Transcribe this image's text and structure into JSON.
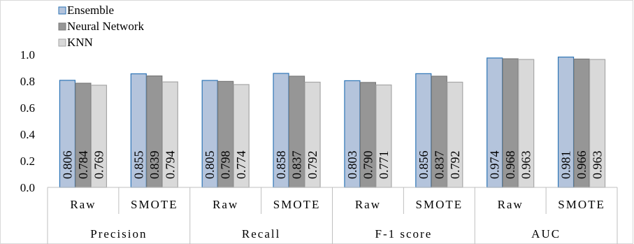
{
  "chart_data": {
    "type": "bar",
    "title": "",
    "xlabel": "",
    "ylabel": "",
    "ylim": [
      0,
      1.0
    ],
    "yticks": [
      "0.0",
      "0.2",
      "0.4",
      "0.6",
      "0.8",
      "1.0"
    ],
    "groups": [
      "Precision",
      "Recall",
      "F-1 score",
      "AUC"
    ],
    "categories": [
      "Raw",
      "SMOTE",
      "Raw",
      "SMOTE",
      "Raw",
      "SMOTE",
      "Raw",
      "SMOTE"
    ],
    "series": [
      {
        "name": "Ensemble",
        "values": [
          0.806,
          0.855,
          0.805,
          0.858,
          0.803,
          0.856,
          0.974,
          0.981
        ],
        "labels": [
          "0.806",
          "0.855",
          "0.805",
          "0.858",
          "0.803",
          "0.856",
          "0.974",
          "0.981"
        ],
        "fill": "#b4c4dc",
        "stroke": "#2e75b6"
      },
      {
        "name": "Neural Network",
        "values": [
          0.784,
          0.839,
          0.798,
          0.837,
          0.79,
          0.837,
          0.968,
          0.966
        ],
        "labels": [
          "0.784",
          "0.839",
          "0.798",
          "0.837",
          "0.790",
          "0.837",
          "0.968",
          "0.966"
        ],
        "fill": "#969696",
        "stroke": "#7a7a7a"
      },
      {
        "name": "KNN",
        "values": [
          0.769,
          0.794,
          0.774,
          0.792,
          0.771,
          0.792,
          0.963,
          0.963
        ],
        "labels": [
          "0.769",
          "0.794",
          "0.774",
          "0.792",
          "0.771",
          "0.792",
          "0.963",
          "0.963"
        ],
        "fill": "#d9d9d9",
        "stroke": "#a6a6a6"
      }
    ],
    "grid": false,
    "legend": "top-left"
  }
}
